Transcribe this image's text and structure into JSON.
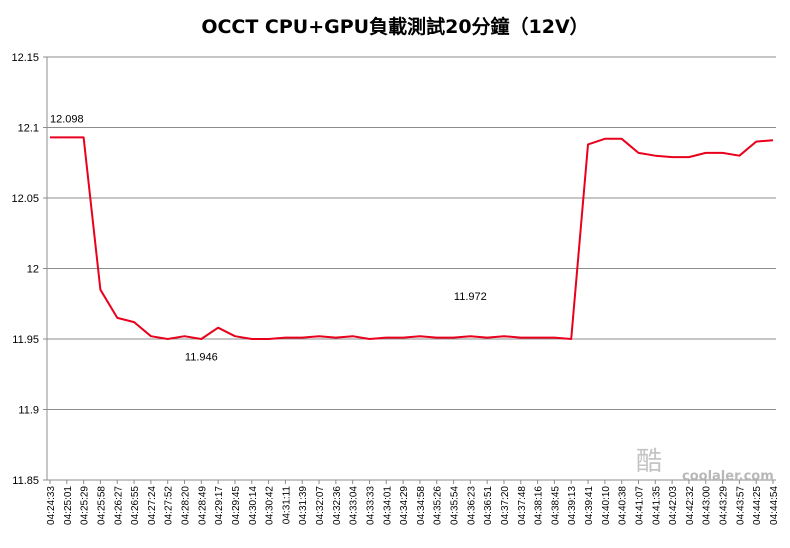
{
  "chart_data": {
    "type": "line",
    "title": "OCCT CPU+GPU負載測試20分鐘（12V）",
    "xlabel": "",
    "ylabel": "",
    "ylim": [
      11.85,
      12.15
    ],
    "yticks": [
      "11.85",
      "11.9",
      "11.95",
      "12",
      "12.05",
      "12.1",
      "12.15"
    ],
    "grid": "horizontal",
    "legend": "none",
    "line_color": "#e8001c",
    "x": [
      "04:24:33",
      "04:25:01",
      "04:25:29",
      "04:25:58",
      "04:26:27",
      "04:26:55",
      "04:27:24",
      "04:27:52",
      "04:28:20",
      "04:28:49",
      "04:29:17",
      "04:29:45",
      "04:30:14",
      "04:30:42",
      "04:31:11",
      "04:31:39",
      "04:32:07",
      "04:32:36",
      "04:33:04",
      "04:33:33",
      "04:34:01",
      "04:34:29",
      "04:34:58",
      "04:35:26",
      "04:35:54",
      "04:36:23",
      "04:36:51",
      "04:37:20",
      "04:37:48",
      "04:38:16",
      "04:38:45",
      "04:39:13",
      "04:39:41",
      "04:40:10",
      "04:40:38",
      "04:41:07",
      "04:41:35",
      "04:42:03",
      "04:42:32",
      "04:43:00",
      "04:43:29",
      "04:43:57",
      "04:44:25",
      "04:44:54"
    ],
    "values": [
      12.093,
      12.093,
      12.093,
      11.985,
      11.965,
      11.962,
      11.952,
      11.95,
      11.952,
      11.95,
      11.958,
      11.952,
      11.95,
      11.95,
      11.951,
      11.951,
      11.952,
      11.951,
      11.952,
      11.95,
      11.951,
      11.951,
      11.952,
      11.951,
      11.951,
      11.952,
      11.951,
      11.952,
      11.951,
      11.951,
      11.951,
      11.95,
      12.088,
      12.092,
      12.092,
      12.082,
      12.08,
      12.079,
      12.079,
      12.082,
      12.082,
      12.08,
      12.09,
      12.091
    ],
    "annotations": [
      {
        "text": "12.098",
        "x": "04:25:01",
        "y": 12.098
      },
      {
        "text": "11.946",
        "x": "04:28:49",
        "y": 11.946
      },
      {
        "text": "11.972",
        "x": "04:36:23",
        "y": 11.972
      }
    ]
  },
  "watermark": {
    "glyph": "酷",
    "text": "coolaler.com"
  }
}
